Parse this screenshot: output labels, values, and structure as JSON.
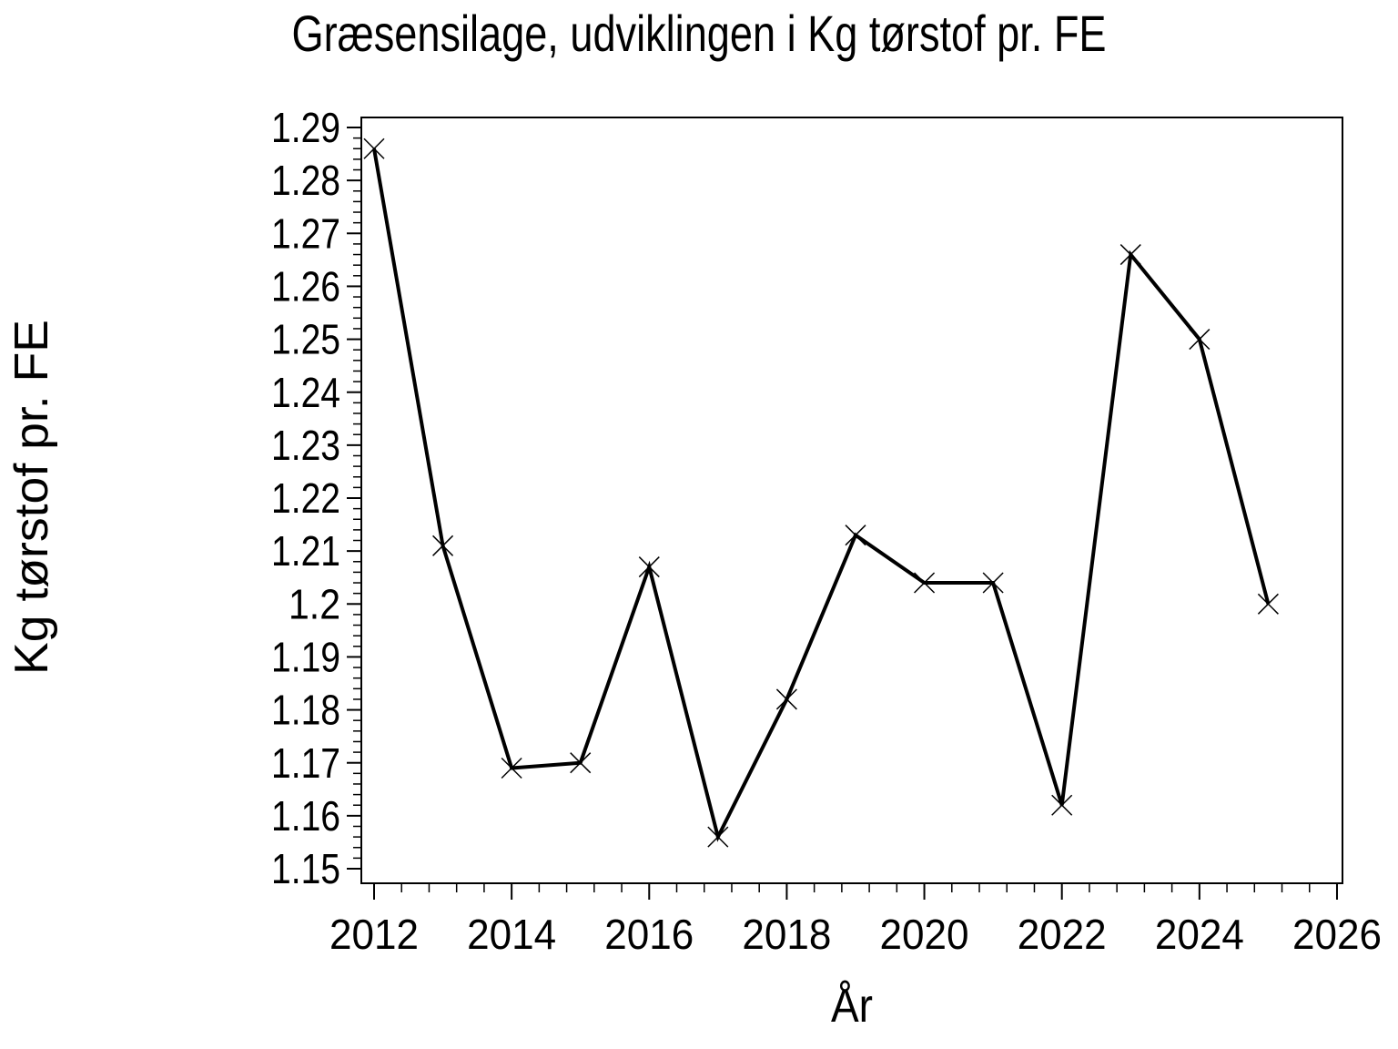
{
  "chart_data": {
    "type": "line",
    "title": "Græsensilage, udviklingen i Kg tørstof pr. FE",
    "xlabel": "År",
    "ylabel": "Kg tørstof pr. FE",
    "series": [
      {
        "name": "Kg tørstof pr. FE",
        "x": [
          2012,
          2013,
          2014,
          2015,
          2016,
          2017,
          2018,
          2019,
          2020,
          2021,
          2022,
          2023,
          2024,
          2025
        ],
        "y": [
          1.286,
          1.211,
          1.169,
          1.17,
          1.207,
          1.156,
          1.182,
          1.213,
          1.204,
          1.204,
          1.162,
          1.266,
          1.25,
          1.2
        ]
      }
    ],
    "marker": "x",
    "line_color": "#000000",
    "background_color": "#ffffff",
    "grid": false,
    "legend": null,
    "x_axis": {
      "major_ticks": [
        2012,
        2014,
        2016,
        2018,
        2020,
        2022,
        2024,
        2026
      ],
      "tick_labels": [
        "2012",
        "2014",
        "2016",
        "2018",
        "2020",
        "2022",
        "2024",
        "2026"
      ],
      "minor_ticks_per_interval": 4,
      "range": [
        2011.8,
        2026.1
      ]
    },
    "y_axis": {
      "major_ticks": [
        1.15,
        1.16,
        1.17,
        1.18,
        1.19,
        1.2,
        1.21,
        1.22,
        1.23,
        1.24,
        1.25,
        1.26,
        1.27,
        1.28,
        1.29
      ],
      "tick_labels": [
        "1.15",
        "1.16",
        "1.17",
        "1.18",
        "1.19",
        "1.2",
        "1.21",
        "1.22",
        "1.23",
        "1.24",
        "1.25",
        "1.26",
        "1.27",
        "1.28",
        "1.29"
      ],
      "minor_ticks_per_interval": 4,
      "range": [
        1.147,
        1.292
      ]
    }
  }
}
